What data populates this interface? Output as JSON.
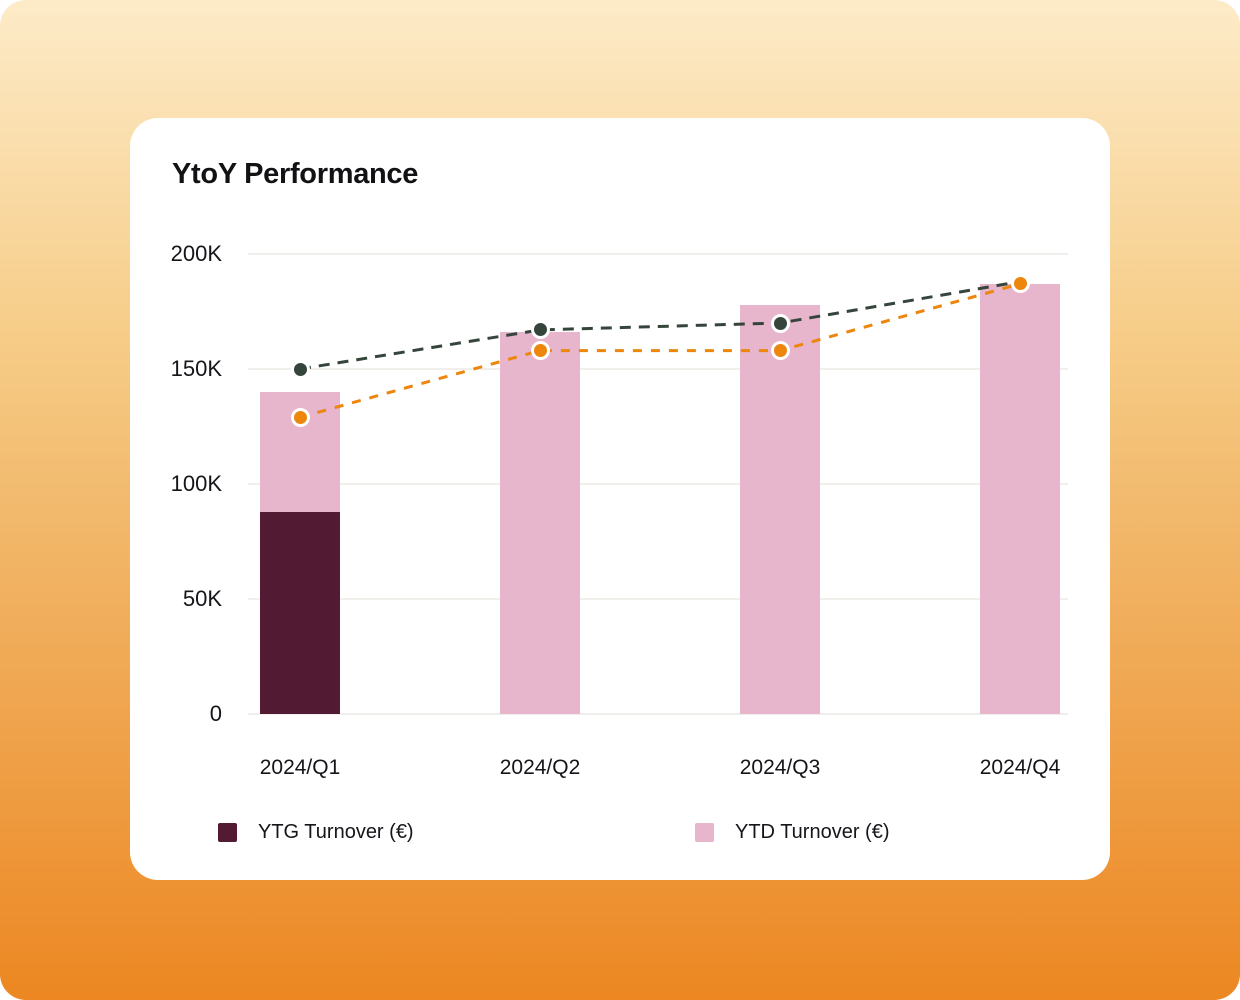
{
  "page": {
    "background_gradient_top": "#FDEBC8",
    "background_gradient_bottom": "#EC8722"
  },
  "card": {
    "background": "#FFFFFF"
  },
  "chart": {
    "title": "YtoY Performance"
  },
  "legend": {
    "items": [
      {
        "label": "YTG Turnover (€)",
        "color": "#521B33"
      },
      {
        "label": "YTD Turnover (€)",
        "color": "#E7B5CC"
      }
    ]
  },
  "chart_data": {
    "type": "bar",
    "title": "YtoY Performance",
    "categories": [
      "2024/Q1",
      "2024/Q2",
      "2024/Q3",
      "2024/Q4"
    ],
    "unit": "EUR",
    "ylim": [
      0,
      200000
    ],
    "yticks": [
      {
        "value": 0,
        "label": "0"
      },
      {
        "value": 50000,
        "label": "50K"
      },
      {
        "value": 100000,
        "label": "100K"
      },
      {
        "value": 150000,
        "label": "150K"
      },
      {
        "value": 200000,
        "label": "200K"
      }
    ],
    "grid": true,
    "legend_position": "bottom",
    "series": [
      {
        "name": "YTD Turnover (€)",
        "type": "bar",
        "role": "full-bar",
        "color": "#E7B5CC",
        "values": [
          140000,
          166000,
          178000,
          187000
        ]
      },
      {
        "name": "YTG Turnover (€)",
        "type": "bar",
        "role": "bottom-segment",
        "color": "#521B33",
        "values": [
          88000,
          0,
          0,
          0
        ]
      },
      {
        "name": "dark-dashed-trend",
        "type": "line",
        "style": "dashed",
        "marker": "circle",
        "color": "#36453B",
        "values": [
          150000,
          167000,
          170000,
          188000
        ]
      },
      {
        "name": "orange-dashed-trend",
        "type": "line",
        "style": "dashed",
        "marker": "circle",
        "color": "#EC860D",
        "values": [
          129000,
          158000,
          158000,
          187000
        ]
      }
    ]
  }
}
